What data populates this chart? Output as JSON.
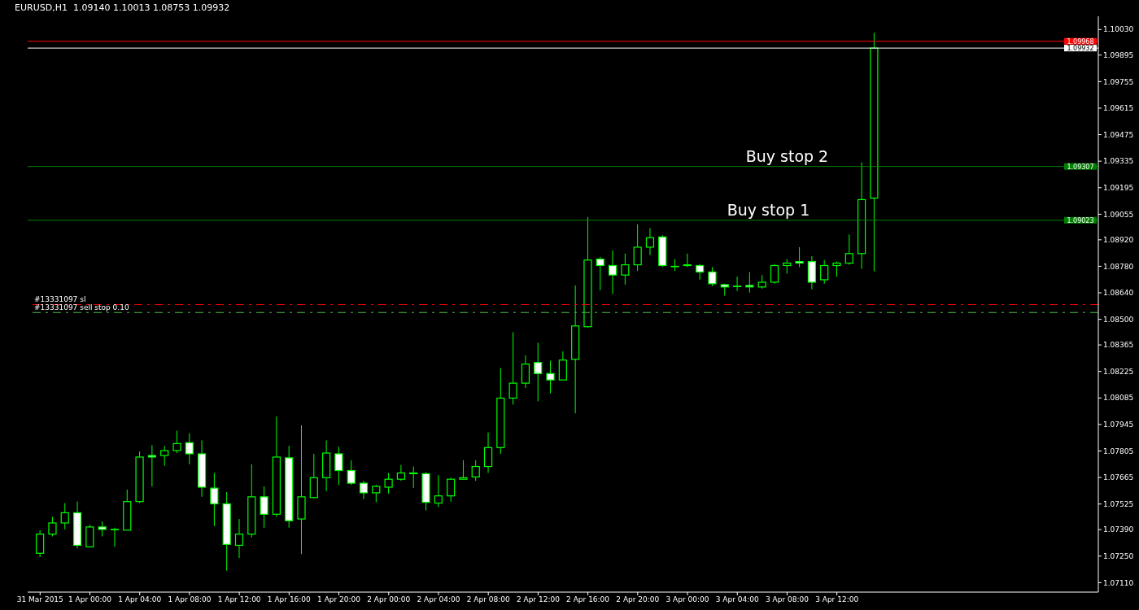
{
  "chart_data": {
    "type": "candlestick",
    "title": "EURUSD,H1  1.09140 1.10013 1.08753 1.09932",
    "color": "#00ff00",
    "x": [
      "2015-03-31T20:00",
      "2015-03-31T21:00",
      "2015-03-31T22:00",
      "2015-03-31T23:00",
      "2015-04-01T00:00",
      "2015-04-01T01:00",
      "2015-04-01T02:00",
      "2015-04-01T03:00",
      "2015-04-01T04:00",
      "2015-04-01T05:00",
      "2015-04-01T06:00",
      "2015-04-01T07:00",
      "2015-04-01T08:00",
      "2015-04-01T09:00",
      "2015-04-01T10:00",
      "2015-04-01T11:00",
      "2015-04-01T12:00",
      "2015-04-01T13:00",
      "2015-04-01T14:00",
      "2015-04-01T15:00",
      "2015-04-01T16:00",
      "2015-04-01T17:00",
      "2015-04-01T18:00",
      "2015-04-01T19:00",
      "2015-04-01T20:00",
      "2015-04-01T21:00",
      "2015-04-01T22:00",
      "2015-04-01T23:00",
      "2015-04-02T00:00",
      "2015-04-02T01:00",
      "2015-04-02T02:00",
      "2015-04-02T03:00",
      "2015-04-02T04:00",
      "2015-04-02T05:00",
      "2015-04-02T06:00",
      "2015-04-02T07:00",
      "2015-04-02T08:00",
      "2015-04-02T09:00",
      "2015-04-02T10:00",
      "2015-04-02T11:00",
      "2015-04-02T12:00",
      "2015-04-02T13:00",
      "2015-04-02T14:00",
      "2015-04-02T15:00",
      "2015-04-02T16:00",
      "2015-04-02T17:00",
      "2015-04-02T18:00",
      "2015-04-02T19:00",
      "2015-04-02T20:00",
      "2015-04-02T21:00",
      "2015-04-02T22:00",
      "2015-04-02T23:00",
      "2015-04-03T00:00",
      "2015-04-03T01:00",
      "2015-04-03T02:00",
      "2015-04-03T03:00",
      "2015-04-03T04:00",
      "2015-04-03T05:00",
      "2015-04-03T06:00",
      "2015-04-03T07:00",
      "2015-04-03T08:00",
      "2015-04-03T09:00",
      "2015-04-03T10:00",
      "2015-04-03T11:00",
      "2015-04-03T12:00",
      "2015-04-03T13:00",
      "2015-04-03T14:00",
      "2015-04-03T15:00"
    ],
    "ohlc": [
      [
        1.07265,
        1.07387,
        1.07245,
        1.07366
      ],
      [
        1.07366,
        1.07458,
        1.07354,
        1.07425
      ],
      [
        1.07425,
        1.0753,
        1.07391,
        1.07479
      ],
      [
        1.07479,
        1.07538,
        1.07291,
        1.07307
      ],
      [
        1.07299,
        1.07416,
        1.07295,
        1.07404
      ],
      [
        1.07404,
        1.07433,
        1.07354,
        1.07391
      ],
      [
        1.07391,
        1.074,
        1.07299,
        1.07391
      ],
      [
        1.07387,
        1.07601,
        1.07387,
        1.07538
      ],
      [
        1.07538,
        1.07802,
        1.0753,
        1.07773
      ],
      [
        1.07781,
        1.07836,
        1.07618,
        1.07773
      ],
      [
        1.07781,
        1.07832,
        1.07727,
        1.07807
      ],
      [
        1.07807,
        1.07912,
        1.07794,
        1.07844
      ],
      [
        1.07849,
        1.07899,
        1.07735,
        1.0779
      ],
      [
        1.0779,
        1.07861,
        1.07563,
        1.07614
      ],
      [
        1.07609,
        1.07689,
        1.07408,
        1.07526
      ],
      [
        1.07526,
        1.07588,
        1.07173,
        1.07312
      ],
      [
        1.07307,
        1.07446,
        1.0724,
        1.07366
      ],
      [
        1.07366,
        1.07735,
        1.07349,
        1.07563
      ],
      [
        1.07563,
        1.07618,
        1.074,
        1.07471
      ],
      [
        1.07471,
        1.07987,
        1.07458,
        1.07773
      ],
      [
        1.07769,
        1.07832,
        1.074,
        1.07437
      ],
      [
        1.07446,
        1.07941,
        1.07261,
        1.07563
      ],
      [
        1.07559,
        1.0779,
        1.07555,
        1.07664
      ],
      [
        1.07664,
        1.07861,
        1.07593,
        1.07794
      ],
      [
        1.0779,
        1.07828,
        1.07626,
        1.07702
      ],
      [
        1.07702,
        1.07756,
        1.07626,
        1.07635
      ],
      [
        1.07635,
        1.07647,
        1.07551,
        1.07584
      ],
      [
        1.07584,
        1.07626,
        1.07534,
        1.07618
      ],
      [
        1.07614,
        1.07689,
        1.0758,
        1.07656
      ],
      [
        1.07656,
        1.07731,
        1.07647,
        1.07689
      ],
      [
        1.07689,
        1.07723,
        1.07609,
        1.07685
      ],
      [
        1.07685,
        1.07693,
        1.07492,
        1.07534
      ],
      [
        1.0753,
        1.07677,
        1.07509,
        1.07568
      ],
      [
        1.07568,
        1.07664,
        1.07538,
        1.07656
      ],
      [
        1.07656,
        1.07756,
        1.07656,
        1.07664
      ],
      [
        1.07668,
        1.07756,
        1.07647,
        1.07723
      ],
      [
        1.07723,
        1.07903,
        1.07689,
        1.07823
      ],
      [
        1.07823,
        1.08243,
        1.0779,
        1.08084
      ],
      [
        1.08084,
        1.08432,
        1.0805,
        1.08163
      ],
      [
        1.08163,
        1.0831,
        1.08138,
        1.08264
      ],
      [
        1.08272,
        1.08377,
        1.08067,
        1.08214
      ],
      [
        1.08214,
        1.08281,
        1.08109,
        1.0818
      ],
      [
        1.0818,
        1.08331,
        1.0818,
        1.08285
      ],
      [
        1.08289,
        1.08679,
        1.08004,
        1.08465
      ],
      [
        1.08461,
        1.0904,
        1.08457,
        1.08813
      ],
      [
        1.08818,
        1.0883,
        1.08654,
        1.08784
      ],
      [
        1.08784,
        1.08864,
        1.08633,
        1.08734
      ],
      [
        1.08734,
        1.08847,
        1.08683,
        1.08788
      ],
      [
        1.08788,
        1.09002,
        1.08755,
        1.08881
      ],
      [
        1.08881,
        1.08981,
        1.08839,
        1.08931
      ],
      [
        1.08935,
        1.08944,
        1.08776,
        1.08784
      ],
      [
        1.0878,
        1.08818,
        1.08755,
        1.0878
      ],
      [
        1.08788,
        1.08847,
        1.08776,
        1.08784
      ],
      [
        1.08784,
        1.08792,
        1.08709,
        1.0875
      ],
      [
        1.0875,
        1.08776,
        1.08675,
        1.08688
      ],
      [
        1.08683,
        1.08688,
        1.08625,
        1.08671
      ],
      [
        1.08675,
        1.08725,
        1.0865,
        1.08675
      ],
      [
        1.08679,
        1.0875,
        1.08641,
        1.08671
      ],
      [
        1.08671,
        1.08734,
        1.08662,
        1.08696
      ],
      [
        1.08696,
        1.08792,
        1.08688,
        1.08784
      ],
      [
        1.08784,
        1.08818,
        1.08742,
        1.08797
      ],
      [
        1.08805,
        1.08881,
        1.08776,
        1.08797
      ],
      [
        1.08805,
        1.08834,
        1.08658,
        1.08696
      ],
      [
        1.08709,
        1.08813,
        1.08688,
        1.08784
      ],
      [
        1.08784,
        1.08805,
        1.08725,
        1.08797
      ],
      [
        1.08797,
        1.08948,
        1.08788,
        1.08847
      ],
      [
        1.08847,
        1.09329,
        1.08767,
        1.09132
      ],
      [
        1.0914,
        1.10013,
        1.08753,
        1.09932
      ]
    ],
    "xlim": [
      "2015-03-31T19:00",
      "2015-04-04T09:00"
    ],
    "xticks": [
      {
        "value": "2015-03-31T20:00",
        "label": "31 Mar 2015"
      },
      {
        "value": "2015-04-01T00:00",
        "label": "1 Apr 00:00"
      },
      {
        "value": "2015-04-01T04:00",
        "label": "1 Apr 04:00"
      },
      {
        "value": "2015-04-01T08:00",
        "label": "1 Apr 08:00"
      },
      {
        "value": "2015-04-01T12:00",
        "label": "1 Apr 12:00"
      },
      {
        "value": "2015-04-01T16:00",
        "label": "1 Apr 16:00"
      },
      {
        "value": "2015-04-01T20:00",
        "label": "1 Apr 20:00"
      },
      {
        "value": "2015-04-02T00:00",
        "label": "2 Apr 00:00"
      },
      {
        "value": "2015-04-02T04:00",
        "label": "2 Apr 04:00"
      },
      {
        "value": "2015-04-02T08:00",
        "label": "2 Apr 08:00"
      },
      {
        "value": "2015-04-02T12:00",
        "label": "2 Apr 12:00"
      },
      {
        "value": "2015-04-02T16:00",
        "label": "2 Apr 16:00"
      },
      {
        "value": "2015-04-02T20:00",
        "label": "2 Apr 20:00"
      },
      {
        "value": "2015-04-03T00:00",
        "label": "3 Apr 00:00"
      },
      {
        "value": "2015-04-03T04:00",
        "label": "3 Apr 04:00"
      },
      {
        "value": "2015-04-03T08:00",
        "label": "3 Apr 08:00"
      },
      {
        "value": "2015-04-03T12:00",
        "label": "3 Apr 12:00"
      }
    ],
    "ylim": [
      1.0706,
      1.101
    ],
    "yticks": [
      {
        "value": 1.1003,
        "label": "1.10030"
      },
      {
        "value": 1.09895,
        "label": "1.09895"
      },
      {
        "value": 1.09755,
        "label": "1.09755"
      },
      {
        "value": 1.09615,
        "label": "1.09615"
      },
      {
        "value": 1.09475,
        "label": "1.09475"
      },
      {
        "value": 1.09335,
        "label": "1.09335"
      },
      {
        "value": 1.09195,
        "label": "1.09195"
      },
      {
        "value": 1.09055,
        "label": "1.09055"
      },
      {
        "value": 1.0892,
        "label": "1.08920"
      },
      {
        "value": 1.0878,
        "label": "1.08780"
      },
      {
        "value": 1.0864,
        "label": "1.08640"
      },
      {
        "value": 1.085,
        "label": "1.08500"
      },
      {
        "value": 1.08365,
        "label": "1.08365"
      },
      {
        "value": 1.08225,
        "label": "1.08225"
      },
      {
        "value": 1.08085,
        "label": "1.08085"
      },
      {
        "value": 1.07945,
        "label": "1.07945"
      },
      {
        "value": 1.07805,
        "label": "1.07805"
      },
      {
        "value": 1.07665,
        "label": "1.07665"
      },
      {
        "value": 1.07525,
        "label": "1.07525"
      },
      {
        "value": 1.0739,
        "label": "1.07390"
      },
      {
        "value": 1.0725,
        "label": "1.07250"
      },
      {
        "value": 1.0711,
        "label": "1.07110"
      }
    ],
    "ref_lines": [
      {
        "axis": "y",
        "value": 1.09968,
        "label": "1.09968",
        "color": "#ff0000",
        "line_style": "solid"
      },
      {
        "axis": "y",
        "value": 1.09932,
        "label": "1.09932",
        "color": "#ffffff",
        "line_style": "solid"
      },
      {
        "axis": "y",
        "value": 1.09307,
        "label": "1.09307",
        "color": "#008000",
        "line_style": "solid"
      },
      {
        "axis": "y",
        "value": 1.09023,
        "label": "1.09023",
        "color": "#008000",
        "line_style": "solid"
      },
      {
        "axis": "y",
        "value": 1.08578,
        "label": "#13331097 sl",
        "color": "#ff0000",
        "line_style": "dashed"
      },
      {
        "axis": "y",
        "value": 1.08536,
        "label": "#13331097 sell stop 0.10",
        "color": "#50c050",
        "line_style": "dashed"
      }
    ],
    "annotations": [
      {
        "text": "Buy stop 2",
        "x": "2015-04-03T08:00",
        "y": 1.09307
      },
      {
        "text": "Buy stop 1",
        "x": "2015-04-03T06:30",
        "y": 1.09023
      }
    ],
    "grid": false,
    "legend": false
  }
}
